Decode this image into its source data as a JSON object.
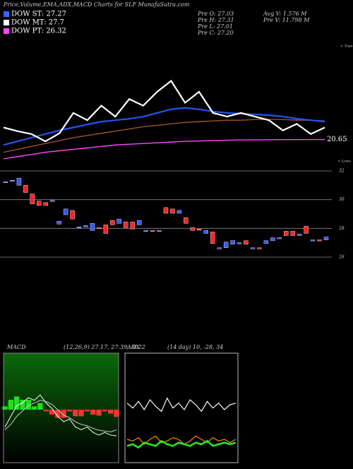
{
  "header": {
    "title": "Price,Volume,EMA,ADX,MACD Charts for SLF MunafaSutra.com",
    "legend": [
      {
        "label": "DOW ST: 27.27",
        "color": "#3366ff"
      },
      {
        "label": "DOW MT: 27.7",
        "color": "#ffffff"
      },
      {
        "label": "DOW PT: 26.32",
        "color": "#ff44ff"
      }
    ],
    "stats": [
      "Pre  O: 27.03",
      "Pre  H: 27.31",
      "Pre  L: 27.01",
      "Pre  C: 27.20",
      "Avg V: 1.576  M",
      "Pre  V: 11.798  M"
    ]
  },
  "chart_data": [
    {
      "type": "line",
      "ylim": [
        17.5,
        33.5
      ],
      "top_label": "< Tops",
      "bottom_label": "< Lows",
      "last_label": "20.65",
      "series": [
        {
          "color": "#a0522d",
          "values": [
            18.9,
            19.3,
            19.7,
            20.1,
            20.5,
            20.9,
            21.2,
            21.5,
            21.8,
            22.1,
            22.4,
            22.6,
            22.8,
            23.0,
            23.1,
            23.2,
            23.3,
            23.3,
            23.4,
            23.4,
            23.4,
            23.3,
            23.3,
            23.2
          ]
        },
        {
          "color": "#ff44ff",
          "values": [
            18.0,
            18.3,
            18.6,
            18.9,
            19.1,
            19.3,
            19.5,
            19.7,
            19.9,
            20.0,
            20.1,
            20.2,
            20.3,
            20.4,
            20.45,
            20.5,
            20.55,
            20.6,
            20.6,
            20.62,
            20.63,
            20.64,
            20.65,
            20.65
          ]
        },
        {
          "color": "#2255ee",
          "values": [
            19.9,
            20.4,
            20.9,
            21.4,
            21.9,
            22.3,
            22.7,
            23.1,
            23.3,
            23.5,
            23.8,
            24.3,
            24.8,
            25.0,
            24.8,
            24.5,
            24.3,
            24.2,
            24.1,
            24.0,
            23.8,
            23.5,
            23.3,
            23.1
          ]
        },
        {
          "color": "#ffffff",
          "values": [
            22.3,
            21.8,
            21.4,
            20.4,
            21.5,
            24.3,
            23.3,
            25.3,
            23.8,
            26.2,
            25.3,
            27.2,
            28.7,
            25.7,
            27.2,
            24.3,
            23.8,
            24.3,
            23.8,
            23.3,
            21.9,
            22.8,
            21.4,
            22.3
          ]
        }
      ]
    },
    {
      "type": "candlestick",
      "ylim": [
        26,
        32
      ],
      "yticks": [
        26,
        28,
        30,
        32
      ],
      "up_color": "#3355ff",
      "down_color": "#ff2222",
      "open": [
        31.2,
        31.3,
        31.0,
        31.0,
        30.4,
        29.9,
        29.8,
        29.9,
        28.3,
        28.95,
        29.25,
        28.05,
        28.1,
        27.85,
        28.05,
        28.25,
        28.55,
        28.35,
        28.45,
        28.45,
        28.25,
        27.8,
        27.85,
        27.8,
        29.45,
        29.35,
        29.05,
        28.75,
        28.05,
        27.95,
        27.65,
        27.75,
        26.6,
        26.65,
        26.9,
        26.95,
        27.15,
        26.6,
        26.65,
        26.95,
        27.15,
        27.3,
        27.8,
        27.8,
        27.5,
        28.15,
        27.15,
        27.2,
        27.2
      ],
      "close": [
        31.25,
        31.35,
        31.5,
        30.5,
        29.7,
        29.6,
        29.6,
        29.95,
        28.5,
        29.35,
        28.65,
        28.1,
        28.2,
        28.35,
        28.0,
        27.65,
        28.25,
        28.65,
        28.05,
        27.95,
        28.55,
        27.85,
        27.8,
        27.85,
        29.05,
        29.05,
        29.25,
        28.35,
        27.85,
        27.9,
        27.85,
        26.95,
        26.65,
        27.05,
        27.15,
        27.0,
        26.9,
        26.65,
        26.6,
        27.15,
        27.35,
        27.35,
        27.5,
        27.5,
        27.6,
        27.65,
        27.2,
        27.15,
        27.4
      ]
    },
    {
      "type": "macd",
      "label": "MACD",
      "params": "(12,26,9) 27.17, 27.39, -0.22",
      "ylim": [
        26.3,
        30
      ],
      "y2lim": [
        -1.5,
        1.5
      ],
      "series": [
        {
          "type": "bar",
          "axis": "y2",
          "up_color": "#22dd22",
          "down_color": "#ff3333",
          "values": [
            0.1,
            0.3,
            0.4,
            0.3,
            0.3,
            0.1,
            0.2,
            -0.05,
            -0.15,
            -0.25,
            -0.25,
            -0.05,
            -0.2,
            -0.2,
            -0.05,
            -0.15,
            -0.18,
            -0.05,
            -0.12,
            -0.22
          ]
        },
        {
          "type": "line",
          "color": "#ffffff",
          "values": [
            27.5,
            27.9,
            28.3,
            28.4,
            28.6,
            28.5,
            28.7,
            28.4,
            28.2,
            27.9,
            27.7,
            27.8,
            27.5,
            27.4,
            27.5,
            27.3,
            27.2,
            27.3,
            27.2,
            27.17
          ]
        },
        {
          "type": "line",
          "color": "#cccccc",
          "values": [
            27.4,
            27.6,
            27.9,
            28.1,
            28.3,
            28.4,
            28.5,
            28.45,
            28.35,
            28.15,
            27.95,
            27.85,
            27.7,
            27.6,
            27.55,
            27.45,
            27.38,
            27.35,
            27.32,
            27.39
          ]
        }
      ]
    },
    {
      "type": "adx",
      "label": "ADX",
      "params": "(14 day) 10, -28, 34",
      "ylim": [
        0,
        60
      ],
      "series": [
        {
          "color": "#ffffff",
          "values": [
            34,
            31,
            35,
            30,
            36,
            32,
            29,
            37,
            31,
            34,
            30,
            36,
            33,
            29,
            35,
            31,
            34,
            30,
            33,
            34
          ]
        },
        {
          "color": "#ff8c00",
          "values": [
            12,
            11,
            13,
            9,
            12,
            14,
            10,
            11,
            13,
            12,
            9,
            11,
            14,
            12,
            10,
            13,
            11,
            12,
            10,
            12
          ]
        },
        {
          "color": "#22ee22",
          "values": [
            8,
            9,
            7,
            10,
            9,
            8,
            11,
            9,
            8,
            10,
            9,
            8,
            10,
            9,
            11,
            8,
            9,
            10,
            9,
            10
          ]
        }
      ]
    }
  ]
}
